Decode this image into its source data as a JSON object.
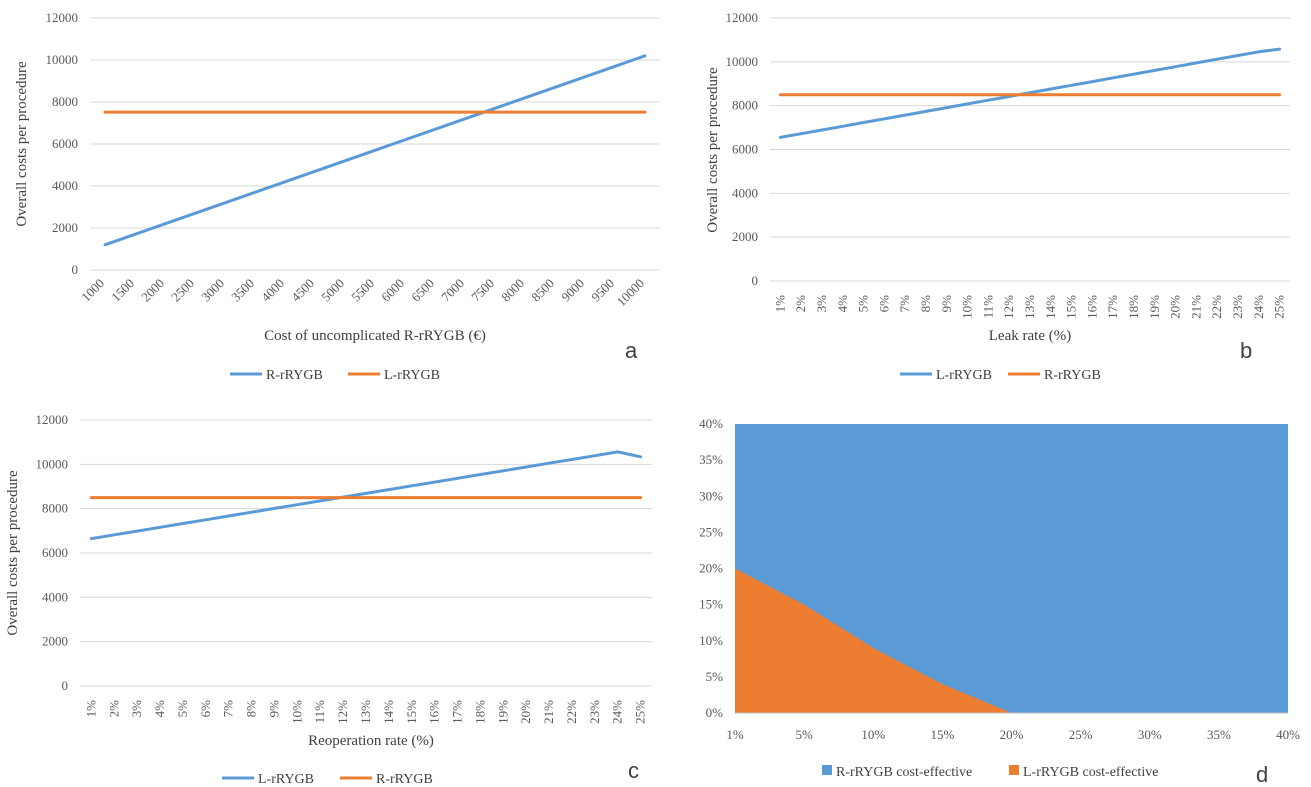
{
  "colors": {
    "blue": "#5b9bd5",
    "orange": "#ed7d31"
  },
  "chart_data": [
    {
      "type": "line",
      "panel": "a",
      "title": "",
      "xlabel": "Cost of uncomplicated R-rRYGB (€)",
      "ylabel": "Overall costs per procedure",
      "categories": [
        "1000",
        "1500",
        "2000",
        "2500",
        "3000",
        "3500",
        "4000",
        "4500",
        "5000",
        "5500",
        "6000",
        "6500",
        "7000",
        "7500",
        "8000",
        "8500",
        "9000",
        "9500",
        "10000"
      ],
      "ylim": [
        0,
        12000
      ],
      "yticks": [
        0,
        2000,
        4000,
        6000,
        8000,
        10000,
        12000
      ],
      "grid": true,
      "legend": "bottom",
      "series": [
        {
          "name": "R-rRYGB",
          "color": "#5b9bd5",
          "values": [
            1200,
            1700,
            2200,
            2700,
            3200,
            3700,
            4200,
            4700,
            5200,
            5700,
            6200,
            6700,
            7200,
            7700,
            8200,
            8700,
            9200,
            9700,
            10200
          ]
        },
        {
          "name": "L-rRYGB",
          "color": "#ed7d31",
          "values": [
            7520,
            7520,
            7520,
            7520,
            7520,
            7520,
            7520,
            7520,
            7520,
            7520,
            7520,
            7520,
            7520,
            7520,
            7520,
            7520,
            7520,
            7520,
            7520
          ]
        }
      ]
    },
    {
      "type": "line",
      "panel": "b",
      "title": "",
      "xlabel": "Leak rate (%)",
      "ylabel": "Overall costs per procedure",
      "categories": [
        "1%",
        "2%",
        "3%",
        "4%",
        "5%",
        "6%",
        "7%",
        "8%",
        "9%",
        "10%",
        "11%",
        "12%",
        "13%",
        "14%",
        "15%",
        "16%",
        "17%",
        "18%",
        "19%",
        "20%",
        "21%",
        "22%",
        "23%",
        "24%",
        "25%"
      ],
      "ylim": [
        0,
        12000
      ],
      "yticks": [
        0,
        2000,
        4000,
        6000,
        8000,
        10000,
        12000
      ],
      "grid": true,
      "legend": "bottom",
      "series": [
        {
          "name": "L-rRYGB",
          "color": "#5b9bd5",
          "values": [
            6550,
            6720,
            6890,
            7060,
            7230,
            7400,
            7570,
            7740,
            7910,
            8080,
            8250,
            8420,
            8590,
            8760,
            8930,
            9100,
            9270,
            9440,
            9610,
            9780,
            9950,
            10120,
            10290,
            10460,
            10580
          ]
        },
        {
          "name": "R-rRYGB",
          "color": "#ed7d31",
          "values": [
            8500,
            8500,
            8500,
            8500,
            8500,
            8500,
            8500,
            8500,
            8500,
            8500,
            8500,
            8500,
            8500,
            8500,
            8500,
            8500,
            8500,
            8500,
            8500,
            8500,
            8500,
            8500,
            8500,
            8500,
            8500
          ]
        }
      ]
    },
    {
      "type": "line",
      "panel": "c",
      "title": "",
      "xlabel": "Reoperation rate (%)",
      "ylabel": "Overall costs per procedure",
      "categories": [
        "1%",
        "2%",
        "3%",
        "4%",
        "5%",
        "6%",
        "7%",
        "8%",
        "9%",
        "10%",
        "11%",
        "12%",
        "13%",
        "14%",
        "15%",
        "16%",
        "17%",
        "18%",
        "19%",
        "20%",
        "21%",
        "22%",
        "23%",
        "24%",
        "25%"
      ],
      "ylim": [
        0,
        12000
      ],
      "yticks": [
        0,
        2000,
        4000,
        6000,
        8000,
        10000,
        12000
      ],
      "grid": true,
      "legend": "bottom",
      "series": [
        {
          "name": "L-rRYGB",
          "color": "#5b9bd5",
          "values": [
            6650,
            6820,
            6990,
            7160,
            7330,
            7500,
            7670,
            7840,
            8010,
            8180,
            8350,
            8520,
            8690,
            8860,
            9030,
            9200,
            9370,
            9540,
            9710,
            9880,
            10050,
            10220,
            10390,
            10560,
            10340
          ]
        },
        {
          "name": "R-rRYGB",
          "color": "#ed7d31",
          "values": [
            8500,
            8500,
            8500,
            8500,
            8500,
            8500,
            8500,
            8500,
            8500,
            8500,
            8500,
            8500,
            8500,
            8500,
            8500,
            8500,
            8500,
            8500,
            8500,
            8500,
            8500,
            8500,
            8500,
            8500,
            8500
          ]
        }
      ]
    },
    {
      "type": "area",
      "panel": "d",
      "title": "",
      "xlabel": "",
      "ylabel": "",
      "categories": [
        "1%",
        "5%",
        "10%",
        "15%",
        "20%",
        "25%",
        "30%",
        "35%",
        "40%"
      ],
      "ylim": [
        0,
        40
      ],
      "yticks": [
        "0%",
        "5%",
        "10%",
        "15%",
        "20%",
        "25%",
        "30%",
        "35%",
        "40%"
      ],
      "grid": false,
      "legend": "bottom",
      "series": [
        {
          "name": "R-rRYGB cost-effective",
          "color": "#5b9bd5",
          "values": [
            40,
            40,
            40,
            40,
            40,
            40,
            40,
            40,
            40
          ]
        },
        {
          "name": "L-rRYGB cost-effective",
          "color": "#ed7d31",
          "values": [
            20,
            15,
            9,
            4,
            0,
            0,
            0,
            0,
            0
          ]
        }
      ]
    }
  ]
}
